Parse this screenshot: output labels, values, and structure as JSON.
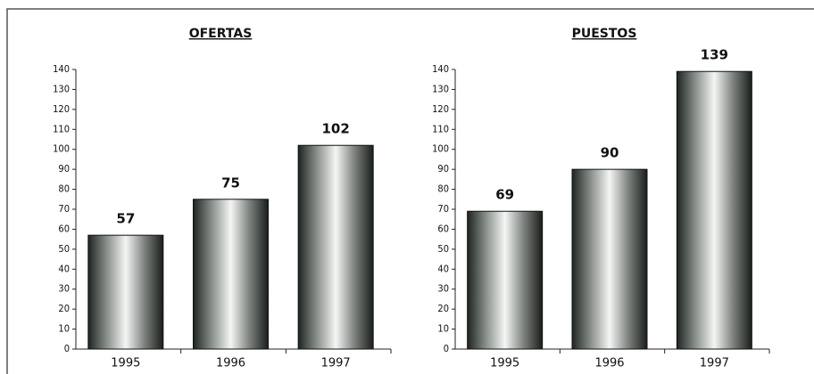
{
  "chart_data": [
    {
      "type": "bar",
      "title": "OFERTAS",
      "categories": [
        "1995",
        "1996",
        "1997"
      ],
      "values": [
        57,
        75,
        102
      ],
      "ylim": [
        0,
        140
      ],
      "yticks": [
        0,
        10,
        20,
        30,
        40,
        50,
        60,
        70,
        80,
        90,
        100,
        110,
        120,
        130,
        140
      ]
    },
    {
      "type": "bar",
      "title": "PUESTOS",
      "categories": [
        "1995",
        "1996",
        "1997"
      ],
      "values": [
        69,
        90,
        139
      ],
      "ylim": [
        0,
        140
      ],
      "yticks": [
        0,
        10,
        20,
        30,
        40,
        50,
        60,
        70,
        80,
        90,
        100,
        110,
        120,
        130,
        140
      ]
    }
  ]
}
